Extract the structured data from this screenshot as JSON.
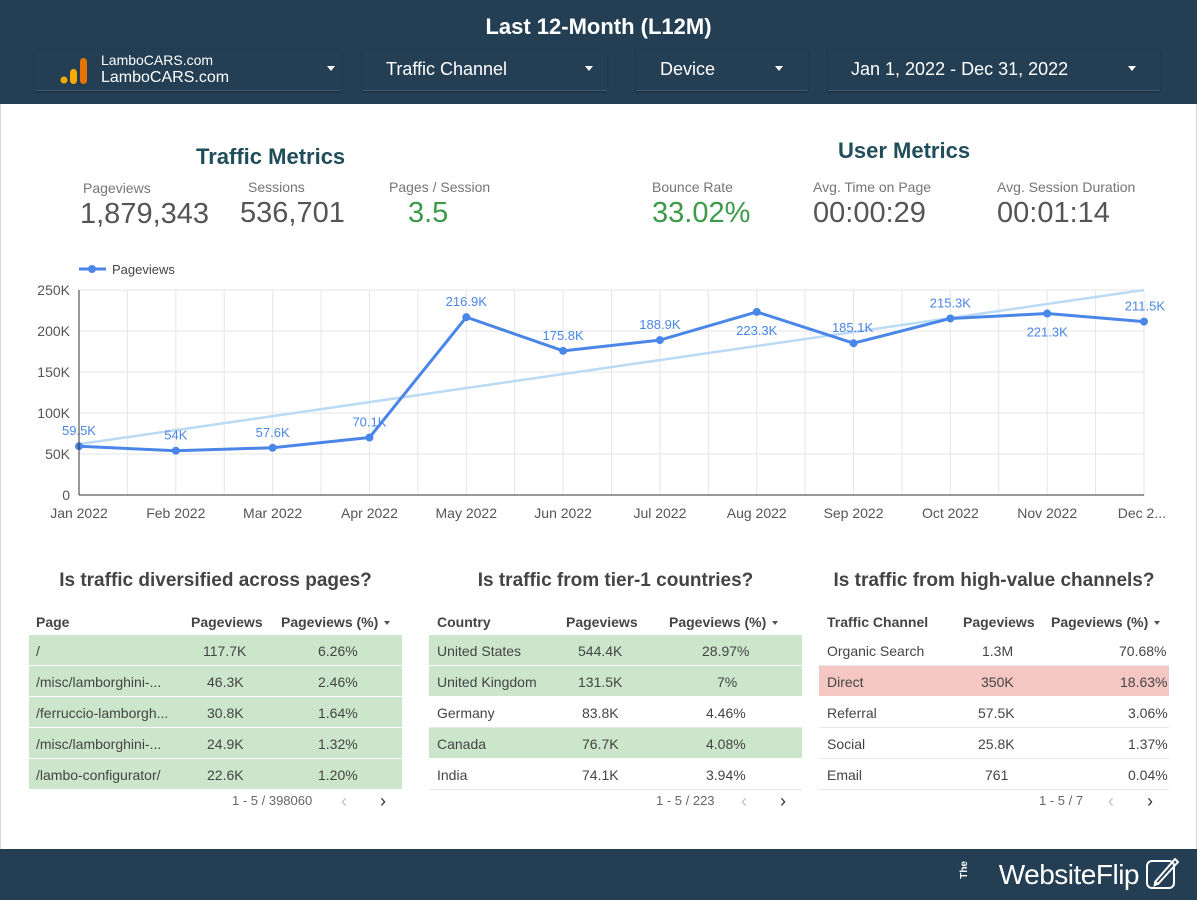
{
  "header": {
    "title": "Last 12-Month (L12M)",
    "filters": {
      "account_line1": "LamboCARS.com",
      "account_line2": "LamboCARS.com",
      "channel": "Traffic Channel",
      "device": "Device",
      "date_range": "Jan 1, 2022 - Dec 31, 2022"
    }
  },
  "traffic_metrics": {
    "title": "Traffic Metrics",
    "pageviews_label": "Pageviews",
    "pageviews_value": "1,879,343",
    "sessions_label": "Sessions",
    "sessions_value": "536,701",
    "pps_label": "Pages / Session",
    "pps_value": "3.5"
  },
  "user_metrics": {
    "title": "User Metrics",
    "bounce_label": "Bounce Rate",
    "bounce_value": "33.02%",
    "time_label": "Avg. Time on Page",
    "time_value": "00:00:29",
    "duration_label": "Avg. Session Duration",
    "duration_value": "00:01:14"
  },
  "chart_data": {
    "type": "line",
    "legend": "Pageviews",
    "legend_position": "top-left",
    "grid": true,
    "categories": [
      "Jan 2022",
      "Feb 2022",
      "Mar 2022",
      "Apr 2022",
      "May 2022",
      "Jun 2022",
      "Jul 2022",
      "Aug 2022",
      "Sep 2022",
      "Oct 2022",
      "Nov 2022",
      "Dec 2..."
    ],
    "series": [
      {
        "name": "Pageviews",
        "values": [
          59500,
          54000,
          57600,
          70100,
          216900,
          175800,
          188900,
          223300,
          185100,
          215300,
          221300,
          211500
        ],
        "labels": [
          "59.5K",
          "54K",
          "57.6K",
          "70.1K",
          "216.9K",
          "175.8K",
          "188.9K",
          "223.3K",
          "185.1K",
          "215.3K",
          "221.3K",
          "211.5K"
        ]
      }
    ],
    "trendline": [
      62000,
      250000
    ],
    "ylim": [
      0,
      250000
    ],
    "yticks": [
      0,
      50000,
      100000,
      150000,
      200000,
      250000
    ],
    "ytick_labels": [
      "0",
      "50K",
      "100K",
      "150K",
      "200K",
      "250K"
    ],
    "colors": {
      "line": "#4a86e8",
      "trend": "#bbdaf5",
      "grid": "#e6e6e6"
    }
  },
  "tables": [
    {
      "question": "Is traffic diversified across pages?",
      "headers": [
        "Page",
        "Pageviews",
        "Pageviews (%)"
      ],
      "rows": [
        {
          "c1": "/",
          "c2": "117.7K",
          "c3": "6.26%",
          "hl": "green"
        },
        {
          "c1": "/misc/lamborghini-...",
          "c2": "46.3K",
          "c3": "2.46%",
          "hl": "green"
        },
        {
          "c1": "/ferruccio-lamborgh...",
          "c2": "30.8K",
          "c3": "1.64%",
          "hl": "green"
        },
        {
          "c1": "/misc/lamborghini-...",
          "c2": "24.9K",
          "c3": "1.32%",
          "hl": "green"
        },
        {
          "c1": "/lambo-configurator/",
          "c2": "22.6K",
          "c3": "1.20%",
          "hl": "green"
        }
      ],
      "pager": "1 - 5 / 398060"
    },
    {
      "question": "Is traffic from tier-1 countries?",
      "headers": [
        "Country",
        "Pageviews",
        "Pageviews (%)"
      ],
      "rows": [
        {
          "c1": "United States",
          "c2": "544.4K",
          "c3": "28.97%",
          "hl": "green"
        },
        {
          "c1": "United Kingdom",
          "c2": "131.5K",
          "c3": "7%",
          "hl": "green"
        },
        {
          "c1": "Germany",
          "c2": "83.8K",
          "c3": "4.46%",
          "hl": "none"
        },
        {
          "c1": "Canada",
          "c2": "76.7K",
          "c3": "4.08%",
          "hl": "green"
        },
        {
          "c1": "India",
          "c2": "74.1K",
          "c3": "3.94%",
          "hl": "none"
        }
      ],
      "pager": "1 - 5 / 223"
    },
    {
      "question": "Is traffic from high-value channels?",
      "headers": [
        "Traffic Channel",
        "Pageviews",
        "Pageviews (%)"
      ],
      "rows": [
        {
          "c1": "Organic Search",
          "c2": "1.3M",
          "c3": "70.68%",
          "hl": "none"
        },
        {
          "c1": "Direct",
          "c2": "350K",
          "c3": "18.63%",
          "hl": "red"
        },
        {
          "c1": "Referral",
          "c2": "57.5K",
          "c3": "3.06%",
          "hl": "none"
        },
        {
          "c1": "Social",
          "c2": "25.8K",
          "c3": "1.37%",
          "hl": "none"
        },
        {
          "c1": "Email",
          "c2": "761",
          "c3": "0.04%",
          "hl": "none"
        }
      ],
      "pager": "1 - 5 / 7"
    }
  ],
  "footer": {
    "brand_prefix": "The",
    "brand_name": "WebsiteFlip"
  },
  "icons": {
    "dropdown": "caret-down-icon",
    "prev": "chevron-left-icon",
    "next": "chevron-right-icon",
    "logo": "analytics-bars-icon"
  }
}
